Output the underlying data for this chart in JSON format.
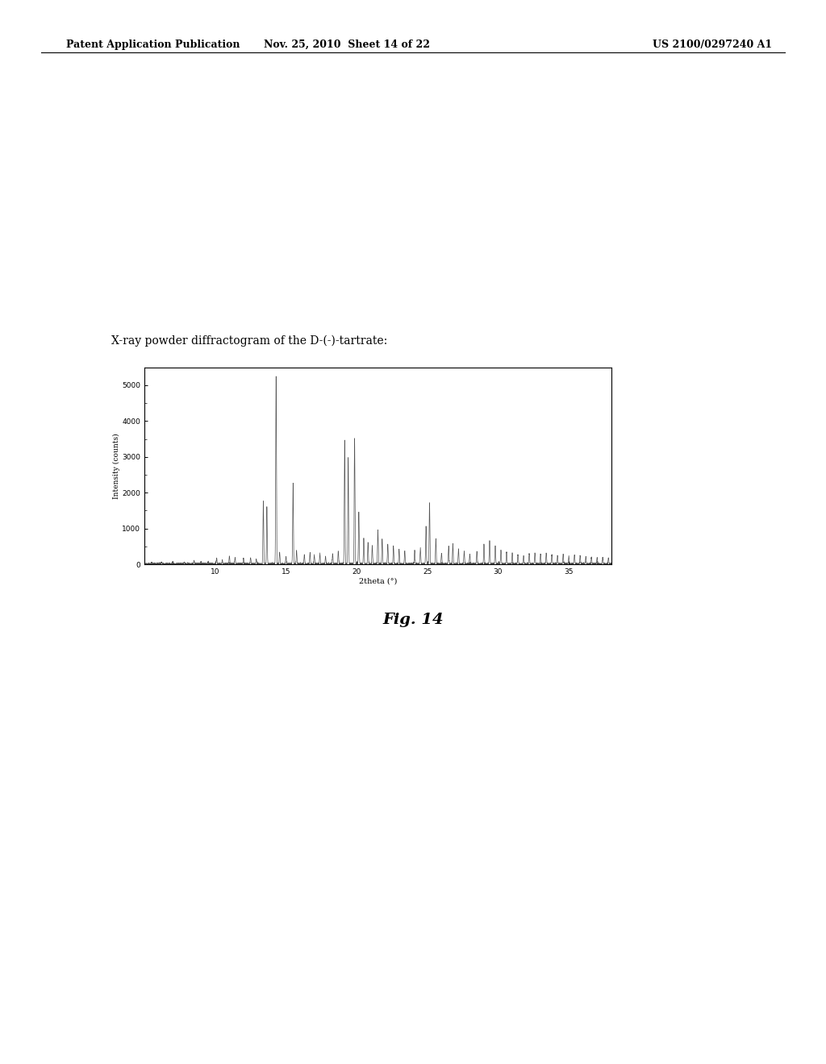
{
  "title_above": "X-ray powder diffractogram of the D-(-)-tartrate:",
  "xlabel": "2theta (°)",
  "ylabel": "Intensity (counts)",
  "xlim": [
    5,
    38
  ],
  "ylim": [
    0,
    5500
  ],
  "yticks": [
    0,
    1000,
    2000,
    3000,
    4000,
    5000
  ],
  "xticks": [
    10,
    15,
    20,
    25,
    30,
    35
  ],
  "header_left": "Patent Application Publication",
  "header_center": "Nov. 25, 2010  Sheet 14 of 22",
  "header_right": "US 2100/0297240 A1",
  "fig_label": "Fig. 14",
  "line_color": "#555555",
  "bg_color": "#ffffff",
  "peaks": [
    [
      5.5,
      30
    ],
    [
      6.2,
      50
    ],
    [
      7.0,
      60
    ],
    [
      7.8,
      40
    ],
    [
      8.5,
      80
    ],
    [
      9.0,
      60
    ],
    [
      9.5,
      70
    ],
    [
      10.1,
      150
    ],
    [
      10.5,
      100
    ],
    [
      11.0,
      200
    ],
    [
      11.4,
      180
    ],
    [
      12.0,
      150
    ],
    [
      12.5,
      170
    ],
    [
      12.9,
      130
    ],
    [
      13.4,
      1750
    ],
    [
      13.65,
      1600
    ],
    [
      14.3,
      5250
    ],
    [
      14.55,
      320
    ],
    [
      15.0,
      200
    ],
    [
      15.5,
      2250
    ],
    [
      15.75,
      380
    ],
    [
      16.3,
      250
    ],
    [
      16.7,
      300
    ],
    [
      17.0,
      250
    ],
    [
      17.4,
      300
    ],
    [
      17.8,
      200
    ],
    [
      18.3,
      280
    ],
    [
      18.7,
      350
    ],
    [
      19.15,
      3450
    ],
    [
      19.4,
      2980
    ],
    [
      19.85,
      3520
    ],
    [
      20.15,
      1450
    ],
    [
      20.5,
      700
    ],
    [
      20.8,
      600
    ],
    [
      21.1,
      500
    ],
    [
      21.5,
      950
    ],
    [
      21.8,
      700
    ],
    [
      22.2,
      550
    ],
    [
      22.6,
      500
    ],
    [
      23.0,
      400
    ],
    [
      23.4,
      350
    ],
    [
      24.1,
      380
    ],
    [
      24.5,
      450
    ],
    [
      24.9,
      1050
    ],
    [
      25.15,
      1700
    ],
    [
      25.6,
      700
    ],
    [
      26.0,
      300
    ],
    [
      26.5,
      500
    ],
    [
      26.8,
      550
    ],
    [
      27.2,
      420
    ],
    [
      27.6,
      350
    ],
    [
      28.0,
      280
    ],
    [
      28.5,
      350
    ],
    [
      29.0,
      550
    ],
    [
      29.4,
      650
    ],
    [
      29.8,
      500
    ],
    [
      30.2,
      380
    ],
    [
      30.6,
      320
    ],
    [
      31.0,
      300
    ],
    [
      31.4,
      250
    ],
    [
      31.8,
      220
    ],
    [
      32.2,
      280
    ],
    [
      32.6,
      300
    ],
    [
      33.0,
      270
    ],
    [
      33.4,
      300
    ],
    [
      33.8,
      250
    ],
    [
      34.2,
      220
    ],
    [
      34.6,
      260
    ],
    [
      35.0,
      220
    ],
    [
      35.4,
      250
    ],
    [
      35.8,
      220
    ],
    [
      36.2,
      200
    ],
    [
      36.6,
      180
    ],
    [
      37.0,
      160
    ],
    [
      37.4,
      180
    ],
    [
      37.8,
      160
    ]
  ]
}
